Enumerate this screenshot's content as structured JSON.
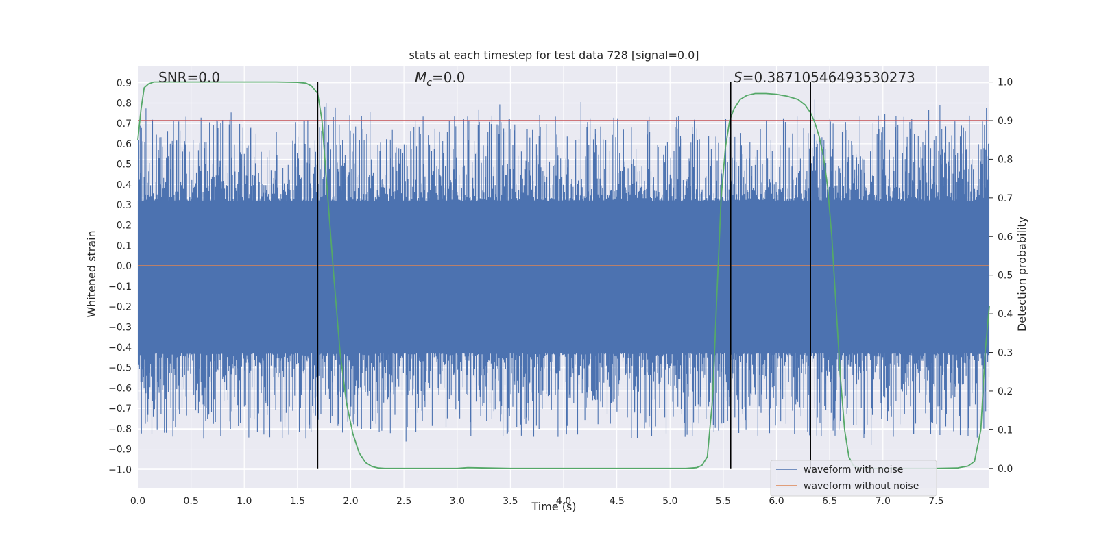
{
  "chart_data": {
    "type": "line",
    "title": "stats at each timestep for test data 728 [signal=0.0]",
    "xlabel": "Time (s)",
    "ylabel": "Whitened strain",
    "y2label": "Detection probability",
    "xlim": [
      0.0,
      8.0
    ],
    "ylim": [
      -1.09,
      0.98
    ],
    "y2lim": [
      -0.05,
      1.04
    ],
    "grid": true,
    "legend_position": "lower right",
    "x_ticks": [
      "0.0",
      "0.5",
      "1.0",
      "1.5",
      "2.0",
      "2.5",
      "3.0",
      "3.5",
      "4.0",
      "4.5",
      "5.0",
      "5.5",
      "6.0",
      "6.5",
      "7.0",
      "7.5"
    ],
    "y_ticks": [
      "0.9",
      "0.8",
      "0.7",
      "0.6",
      "0.5",
      "0.4",
      "0.3",
      "0.2",
      "0.1",
      "0.0",
      "−0.1",
      "−0.2",
      "−0.3",
      "−0.4",
      "−0.5",
      "−0.6",
      "−0.7",
      "−0.8",
      "−0.9",
      "−1.0"
    ],
    "y2_ticks": [
      "1.0",
      "0.9",
      "0.8",
      "0.7",
      "0.6",
      "0.5",
      "0.4",
      "0.3",
      "0.2",
      "0.1",
      "0.0"
    ],
    "annotations": {
      "snr": "SNR=0.0",
      "mc_symbol": "M",
      "mc_subscript": "c",
      "mc_value": "=0.0",
      "s_symbol": "S",
      "s_value": "=0.38710546493530273"
    },
    "threshold": {
      "value": 0.9,
      "axis": "y2",
      "color": "#c44e52"
    },
    "vertical_lines": [
      1.69,
      5.57,
      6.32
    ],
    "series": [
      {
        "name": "waveform with noise",
        "color": "#4c72b0",
        "axis": "y",
        "description_values": {
          "core_band": [
            -0.43,
            0.32
          ]
        }
      },
      {
        "name": "waveform without noise",
        "color": "#dd8452",
        "axis": "y",
        "x": [
          0.0,
          8.0
        ],
        "y": [
          0.0,
          0.0
        ]
      },
      {
        "color": "#55a868",
        "axis": "y2",
        "x": [
          0.0,
          0.03,
          0.06,
          0.1,
          0.15,
          0.3,
          0.6,
          1.0,
          1.3,
          1.5,
          1.58,
          1.63,
          1.66,
          1.69,
          1.73,
          1.78,
          1.84,
          1.9,
          1.96,
          2.02,
          2.08,
          2.14,
          2.2,
          2.26,
          2.32,
          2.5,
          3.0,
          3.1,
          3.5,
          4.0,
          4.5,
          5.0,
          5.15,
          5.25,
          5.3,
          5.35,
          5.4,
          5.44,
          5.48,
          5.52,
          5.56,
          5.6,
          5.66,
          5.72,
          5.8,
          5.9,
          6.0,
          6.1,
          6.2,
          6.27,
          6.32,
          6.36,
          6.4,
          6.44,
          6.48,
          6.52,
          6.56,
          6.6,
          6.64,
          6.68,
          6.72,
          6.76,
          6.8,
          7.0,
          7.5,
          7.7,
          7.8,
          7.86,
          7.92,
          7.96,
          8.0
        ],
        "y": [
          0.85,
          0.93,
          0.985,
          0.995,
          1.0,
          1.0,
          1.0,
          1.0,
          1.0,
          0.999,
          0.997,
          0.99,
          0.98,
          0.97,
          0.9,
          0.72,
          0.5,
          0.3,
          0.17,
          0.09,
          0.04,
          0.015,
          0.005,
          0.001,
          0.0,
          0.0,
          0.0,
          0.002,
          0.0,
          0.0,
          0.0,
          0.0,
          0.0,
          0.002,
          0.008,
          0.03,
          0.18,
          0.45,
          0.7,
          0.83,
          0.9,
          0.93,
          0.955,
          0.965,
          0.97,
          0.97,
          0.968,
          0.963,
          0.955,
          0.94,
          0.92,
          0.895,
          0.86,
          0.81,
          0.73,
          0.6,
          0.42,
          0.24,
          0.1,
          0.03,
          0.008,
          0.002,
          0.0,
          0.0,
          0.0,
          0.001,
          0.006,
          0.018,
          0.1,
          0.3,
          0.42
        ]
      }
    ],
    "legend": [
      {
        "label": "waveform with noise",
        "color": "#4c72b0"
      },
      {
        "label": "waveform without noise",
        "color": "#dd8452"
      }
    ]
  },
  "colors": {
    "plot_background": "#eaeaf2",
    "grid": "#ffffff",
    "text": "#262626"
  }
}
